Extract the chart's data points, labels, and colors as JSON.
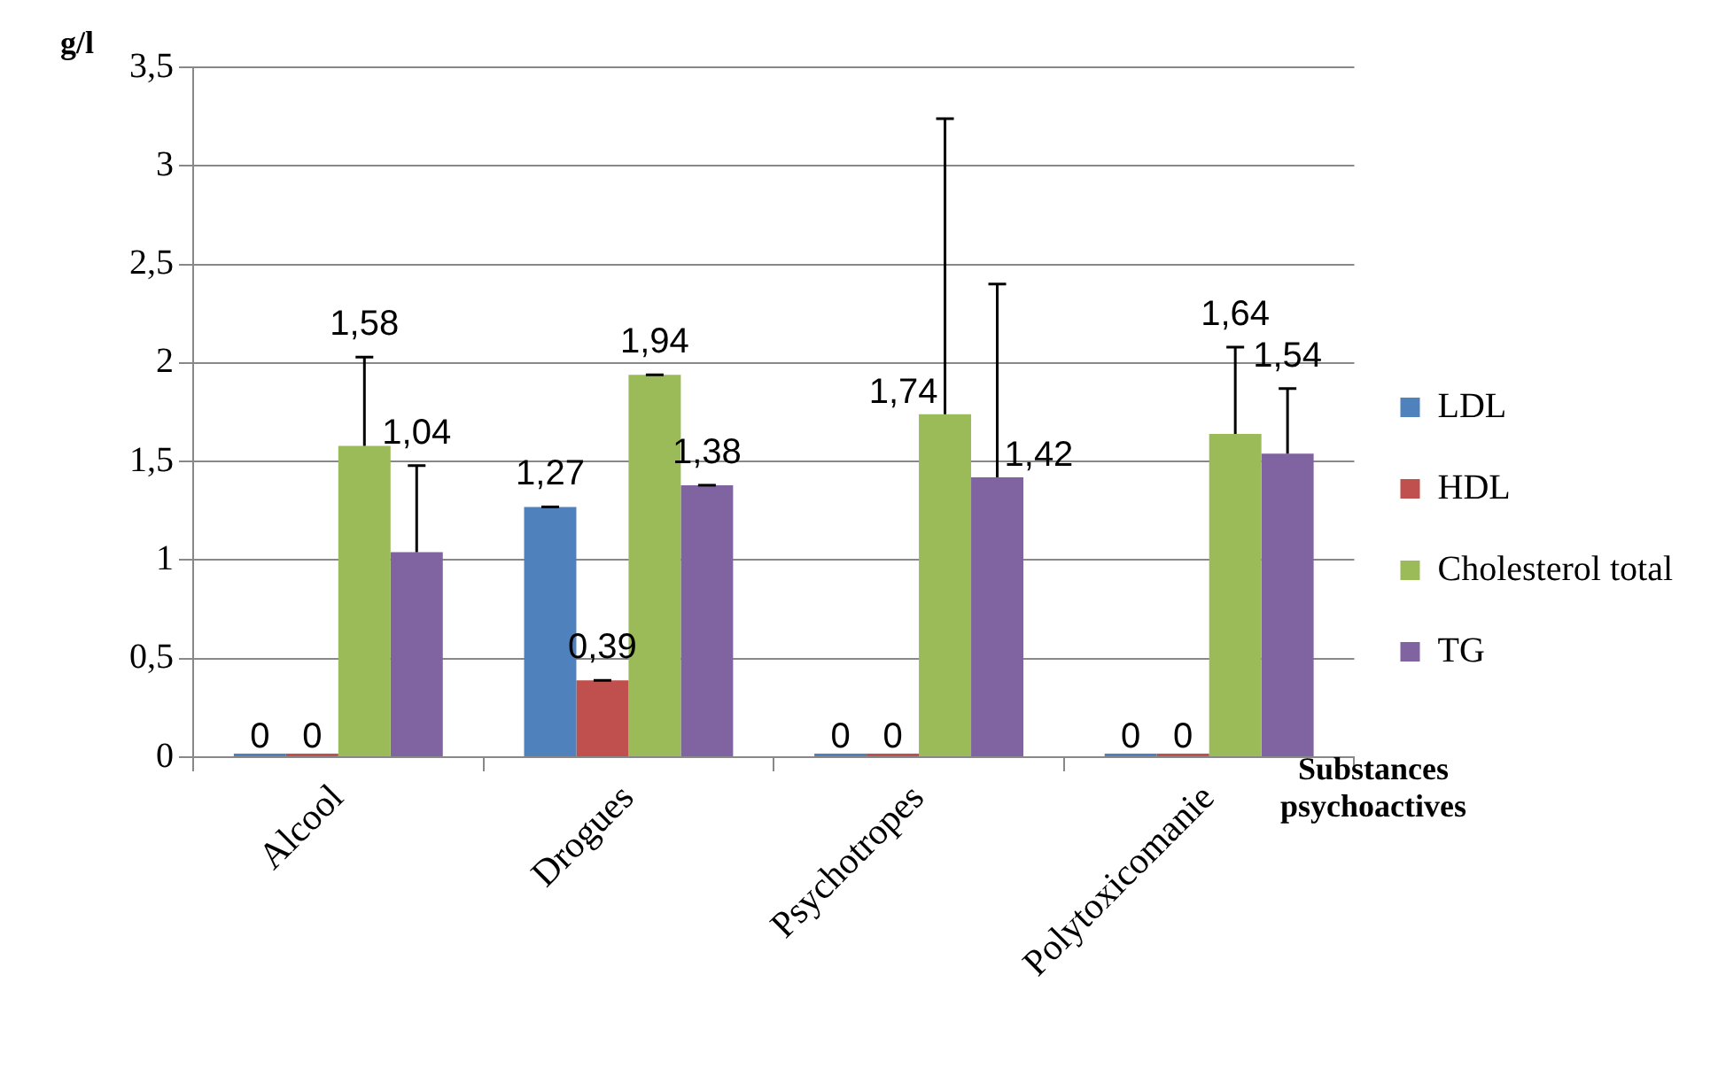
{
  "chart_data": {
    "type": "bar",
    "ylabel": "g/l",
    "xlabel": "Substances psychoactives",
    "categories": [
      "Alcool",
      "Drogues",
      "Psychotropes",
      "Polytoxicomanie"
    ],
    "series": [
      {
        "name": "LDL",
        "color": "#4f81bd",
        "values": [
          0,
          1.27,
          0,
          0
        ],
        "errors": [
          null,
          0,
          null,
          null
        ],
        "value_labels": [
          "0",
          "1,27",
          "0",
          "0"
        ]
      },
      {
        "name": "HDL",
        "color": "#c0504d",
        "values": [
          0,
          0.39,
          0,
          0
        ],
        "errors": [
          null,
          0,
          null,
          null
        ],
        "value_labels": [
          "0",
          "0,39",
          "0",
          "0"
        ]
      },
      {
        "name": "Cholesterol total",
        "color": "#9bbb59",
        "values": [
          1.58,
          1.94,
          1.74,
          1.64
        ],
        "errors": [
          0.45,
          0,
          1.5,
          0.44
        ],
        "value_labels": [
          "1,58",
          "1,94",
          "1,74",
          "1,64"
        ]
      },
      {
        "name": "TG",
        "color": "#8064a2",
        "values": [
          1.04,
          1.38,
          1.42,
          1.54
        ],
        "errors": [
          0.44,
          0,
          0.98,
          0.33
        ],
        "value_labels": [
          "1,04",
          "1,38",
          "1,42",
          "1,54"
        ]
      }
    ],
    "ylim": [
      0,
      3.5
    ],
    "yticks": [
      0,
      {
        "value": 0.5,
        "label": "0,5"
      },
      1,
      {
        "value": 1.5,
        "label": "1,5"
      },
      2,
      {
        "value": 2.5,
        "label": "2,5"
      },
      3,
      {
        "value": 3.5,
        "label": "3,5"
      }
    ],
    "grid": "y",
    "legend": "right"
  }
}
